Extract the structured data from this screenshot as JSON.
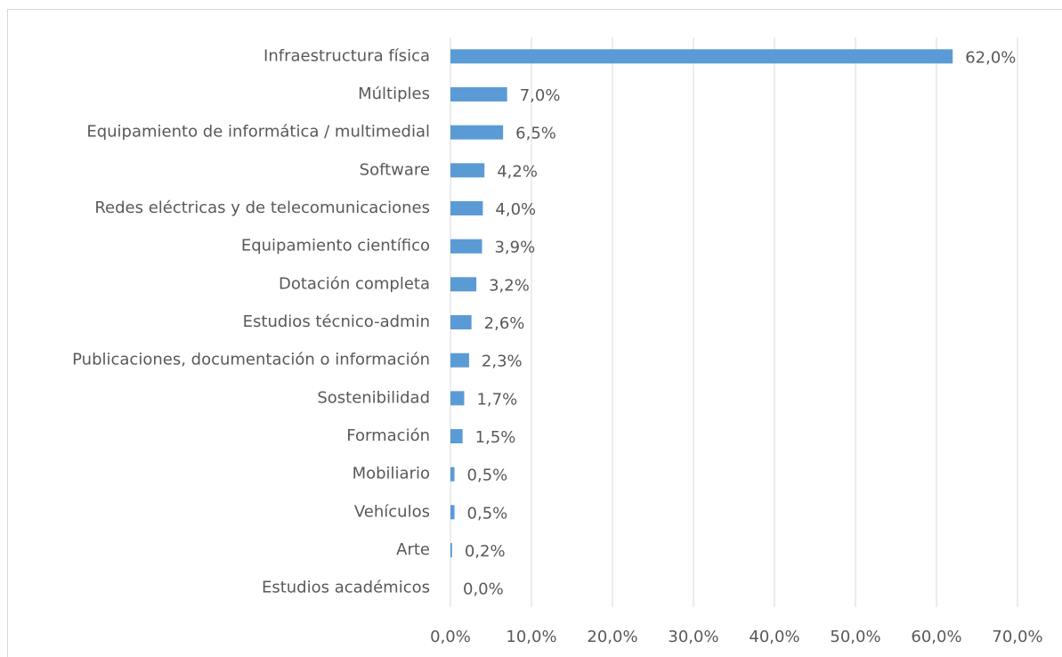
{
  "chart_data": {
    "type": "bar",
    "orientation": "horizontal",
    "categories": [
      "Infraestructura física",
      "Múltiples",
      "Equipamiento de informática / multimedial",
      "Software",
      "Redes eléctricas y de telecomunicaciones",
      "Equipamiento científico",
      "Dotación completa",
      "Estudios técnico-admin",
      "Publicaciones, documentación o información",
      "Sostenibilidad",
      "Formación",
      "Mobiliario",
      "Vehículos",
      "Arte",
      "Estudios académicos"
    ],
    "values": [
      62.0,
      7.0,
      6.5,
      4.2,
      4.0,
      3.9,
      3.2,
      2.6,
      2.3,
      1.7,
      1.5,
      0.5,
      0.5,
      0.2,
      0.0
    ],
    "value_labels": [
      "62,0%",
      "7,0%",
      "6,5%",
      "4,2%",
      "4,0%",
      "3,9%",
      "3,2%",
      "2,6%",
      "2,3%",
      "1,7%",
      "1,5%",
      "0,5%",
      "0,5%",
      "0,2%",
      "0,0%"
    ],
    "color": "#5b9bd5",
    "xlim": [
      0,
      70
    ],
    "xticks": [
      {
        "value": 0,
        "label": "0,0%"
      },
      {
        "value": 10,
        "label": "10,0%"
      },
      {
        "value": 20,
        "label": "20,0%"
      },
      {
        "value": 30,
        "label": "30,0%"
      },
      {
        "value": 40,
        "label": "40,0%"
      },
      {
        "value": 50,
        "label": "50,0%"
      },
      {
        "value": 60,
        "label": "60,0%"
      },
      {
        "value": 70,
        "label": "70,0%"
      }
    ],
    "grid": true
  }
}
